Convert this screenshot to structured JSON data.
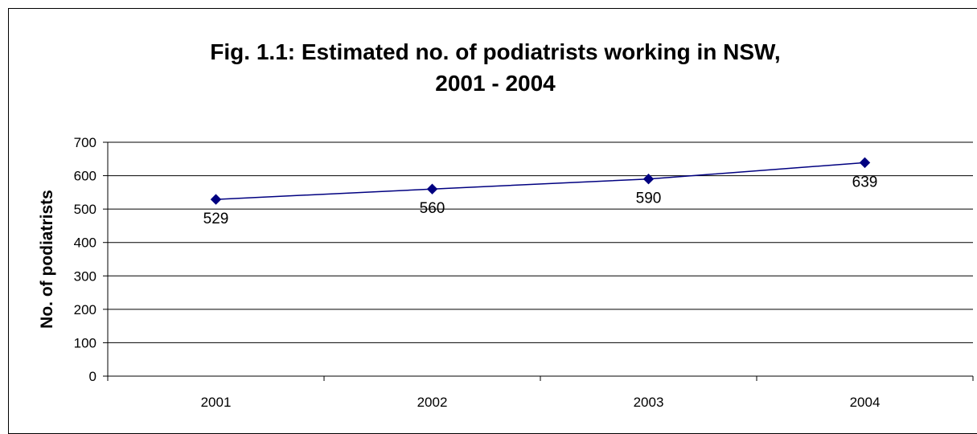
{
  "chart_data": {
    "type": "line",
    "title_lines": [
      "Fig. 1.1: Estimated no. of podiatrists working in NSW,",
      "2001 - 2004"
    ],
    "xlabel": "",
    "ylabel": "No. of podiatrists",
    "categories": [
      "2001",
      "2002",
      "2003",
      "2004"
    ],
    "series": [
      {
        "values": [
          529,
          560,
          590,
          639
        ],
        "color": "#000080",
        "marker": "diamond"
      }
    ],
    "data_labels": [
      "529",
      "560",
      "590",
      "639"
    ],
    "ylim": [
      0,
      700
    ],
    "yticks": [
      0,
      100,
      200,
      300,
      400,
      500,
      600,
      700
    ],
    "grid": "horizontal",
    "legend": "none"
  }
}
